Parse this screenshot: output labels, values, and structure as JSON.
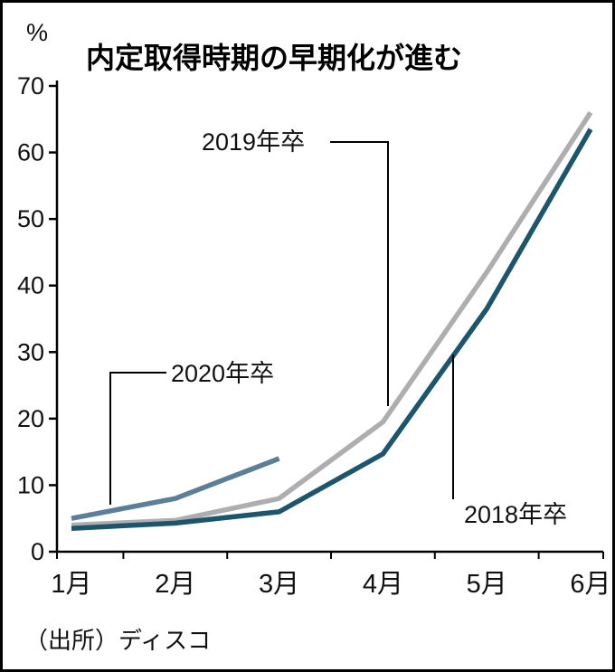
{
  "header": {
    "title": "内定取得時期の早期化が進む",
    "unit_label": "%"
  },
  "annotations": {
    "label_2019": "2019年卒",
    "label_2020": "2020年卒",
    "label_2018": "2018年卒"
  },
  "source": "（出所）ディスコ",
  "colors": {
    "series_2018": "#1d566c",
    "series_2019": "#aeaeb1",
    "series_2020": "#5b7f97",
    "axis": "#000000"
  },
  "chart_data": {
    "type": "line",
    "title": "内定取得時期の早期化が進む",
    "ylabel": "%",
    "xlabel": "",
    "categories": [
      "1月",
      "2月",
      "3月",
      "4月",
      "5月",
      "6月"
    ],
    "series": [
      {
        "name": "2019年卒",
        "color": "#aeaeb1",
        "values": [
          4.0,
          4.7,
          8.0,
          19.5,
          42.0,
          66.0
        ]
      },
      {
        "name": "2018年卒",
        "color": "#1d566c",
        "values": [
          3.5,
          4.3,
          6.0,
          14.7,
          36.5,
          63.5
        ]
      },
      {
        "name": "2020年卒",
        "color": "#5b7f97",
        "values": [
          5.0,
          8.0,
          14.0
        ]
      }
    ],
    "ylim": [
      0,
      70
    ],
    "yticks": [
      0,
      10,
      20,
      30,
      40,
      50,
      60,
      70
    ],
    "grid": false,
    "legend_position": "annotated-on-chart"
  }
}
